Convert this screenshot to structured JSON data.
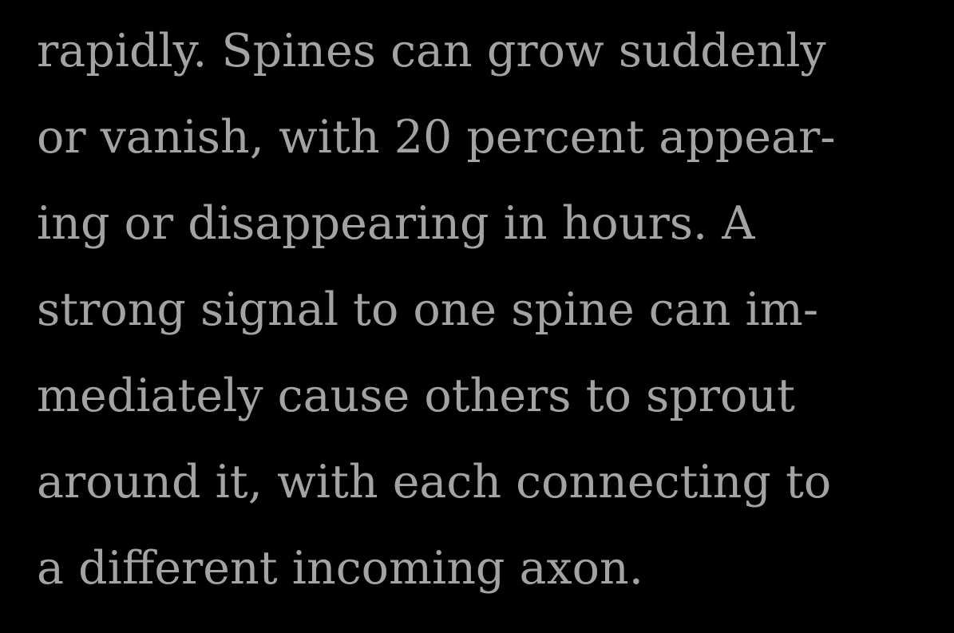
{
  "reader": {
    "lines": [
      "rapidly. Spines can grow suddenly",
      "or vanish, with 20 percent appear-",
      "ing or disappearing in hours. A",
      "strong signal to one spine can im-",
      "mediately cause others to sprout",
      "around it, with each connecting to",
      "a different incoming axon."
    ],
    "text_color": "#a3a3a3",
    "background_color": "#000000"
  }
}
